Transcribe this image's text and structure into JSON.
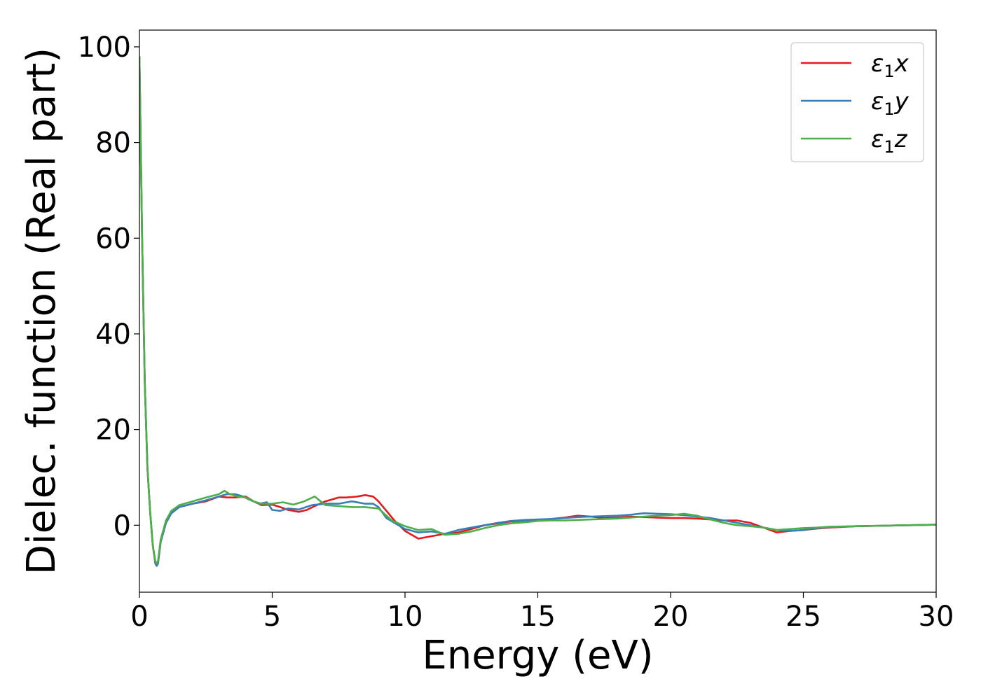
{
  "chart_data": {
    "type": "line",
    "title": "",
    "xlabel": "Energy (eV)",
    "ylabel": "Dielec. function (Real part)",
    "xlim": [
      0,
      30
    ],
    "ylim": [
      -14,
      103.5
    ],
    "xticks": [
      0,
      5,
      10,
      15,
      20,
      25,
      30
    ],
    "yticks": [
      0,
      20,
      40,
      60,
      80,
      100
    ],
    "grid": false,
    "legend_position": "top-right",
    "series": [
      {
        "name": "ε₁x",
        "legend_base": "ε",
        "legend_sub": "1",
        "legend_var": "x",
        "color": "#e41a1c",
        "x": [
          0,
          0.1,
          0.2,
          0.3,
          0.4,
          0.5,
          0.6,
          0.65,
          0.7,
          0.8,
          1.0,
          1.2,
          1.5,
          2.0,
          2.5,
          3.0,
          3.3,
          3.6,
          4.0,
          4.3,
          4.6,
          5.0,
          5.3,
          5.6,
          6.0,
          6.3,
          6.6,
          7.0,
          7.5,
          7.8,
          8.2,
          8.5,
          8.8,
          9.0,
          9.3,
          9.6,
          10.0,
          10.5,
          11.0,
          11.5,
          12.0,
          12.5,
          13.0,
          13.5,
          14.0,
          14.5,
          15.0,
          15.5,
          16.0,
          16.5,
          17.0,
          17.5,
          18.0,
          18.5,
          19.0,
          19.5,
          20.0,
          20.5,
          21.0,
          21.5,
          22.0,
          22.5,
          23.0,
          23.5,
          24.0,
          24.5,
          25.0,
          25.5,
          26.0,
          27.0,
          28.0,
          29.0,
          30.0
        ],
        "y": [
          98,
          60,
          30,
          12,
          3,
          -4,
          -8,
          -8.5,
          -8,
          -3.5,
          0.5,
          2.5,
          3.8,
          4.5,
          5.0,
          6.0,
          5.8,
          5.8,
          6.0,
          5.0,
          4.2,
          4.3,
          3.8,
          3.2,
          2.8,
          3.2,
          4.0,
          5.0,
          5.8,
          5.8,
          6.0,
          6.3,
          6.0,
          5.0,
          3.0,
          1.0,
          -1.2,
          -2.8,
          -2.3,
          -1.8,
          -1.5,
          -0.8,
          0.0,
          0.4,
          0.8,
          1.0,
          1.1,
          1.3,
          1.6,
          2.0,
          1.8,
          1.5,
          1.6,
          1.8,
          1.7,
          1.6,
          1.5,
          1.5,
          1.4,
          1.2,
          1.0,
          1.0,
          0.5,
          -0.5,
          -1.5,
          -1.2,
          -1.0,
          -0.7,
          -0.5,
          -0.2,
          -0.1,
          0.0,
          0.1
        ]
      },
      {
        "name": "ε₁y",
        "legend_base": "ε",
        "legend_sub": "1",
        "legend_var": "y",
        "color": "#377eb8",
        "x": [
          0,
          0.1,
          0.2,
          0.3,
          0.4,
          0.5,
          0.6,
          0.65,
          0.7,
          0.8,
          1.0,
          1.2,
          1.5,
          2.0,
          2.5,
          3.0,
          3.3,
          3.6,
          3.9,
          4.2,
          4.5,
          4.8,
          5.0,
          5.3,
          5.6,
          6.0,
          6.5,
          7.0,
          7.5,
          8.0,
          8.5,
          8.8,
          9.0,
          9.3,
          9.6,
          10.0,
          10.5,
          11.0,
          11.5,
          12.0,
          12.5,
          13.0,
          13.5,
          14.0,
          14.5,
          15.0,
          15.5,
          16.0,
          16.5,
          17.0,
          17.5,
          18.0,
          18.5,
          19.0,
          19.5,
          20.0,
          20.5,
          21.0,
          21.5,
          22.0,
          22.5,
          23.0,
          23.5,
          24.0,
          24.5,
          25.0,
          25.5,
          26.0,
          27.0,
          28.0,
          29.0,
          30.0
        ],
        "y": [
          98,
          60,
          30,
          12,
          3,
          -4,
          -8,
          -8.5,
          -8,
          -3.5,
          0.5,
          2.5,
          3.8,
          4.5,
          5.2,
          6.0,
          6.5,
          6.5,
          6.0,
          5.2,
          4.5,
          4.8,
          3.2,
          3.0,
          3.5,
          3.3,
          4.2,
          4.5,
          4.5,
          5.0,
          4.5,
          4.5,
          3.8,
          1.5,
          0.5,
          -0.8,
          -1.5,
          -1.3,
          -1.8,
          -1.0,
          -0.5,
          0.0,
          0.5,
          0.9,
          1.1,
          1.2,
          1.3,
          1.5,
          1.7,
          1.8,
          1.9,
          2.0,
          2.2,
          2.5,
          2.4,
          2.3,
          2.1,
          1.8,
          1.5,
          1.0,
          0.5,
          0.0,
          -0.5,
          -1.0,
          -1.2,
          -1.0,
          -0.6,
          -0.4,
          -0.2,
          -0.1,
          0.0,
          0.1
        ]
      },
      {
        "name": "ε₁z",
        "legend_base": "ε",
        "legend_sub": "1",
        "legend_var": "z",
        "color": "#4daf4a",
        "x": [
          0,
          0.1,
          0.2,
          0.3,
          0.4,
          0.5,
          0.6,
          0.65,
          0.7,
          0.8,
          1.0,
          1.2,
          1.5,
          2.0,
          2.5,
          3.0,
          3.2,
          3.4,
          3.7,
          4.0,
          4.3,
          4.6,
          5.0,
          5.4,
          5.8,
          6.2,
          6.6,
          7.0,
          7.5,
          8.0,
          8.5,
          9.0,
          9.5,
          10.0,
          10.5,
          11.0,
          11.5,
          12.0,
          12.5,
          13.0,
          13.5,
          14.0,
          14.5,
          15.0,
          15.5,
          16.0,
          16.5,
          17.0,
          17.5,
          18.0,
          18.5,
          19.0,
          19.5,
          20.0,
          20.5,
          21.0,
          21.5,
          22.0,
          22.5,
          23.0,
          23.5,
          24.0,
          24.5,
          25.0,
          25.5,
          26.0,
          27.0,
          28.0,
          29.0,
          30.0
        ],
        "y": [
          98,
          60,
          30,
          12,
          3,
          -4,
          -7.5,
          -8,
          -7.5,
          -3.0,
          1.0,
          3.0,
          4.2,
          5.0,
          5.8,
          6.5,
          7.2,
          6.5,
          6.0,
          5.8,
          5.0,
          4.5,
          4.5,
          4.8,
          4.3,
          5.0,
          6.0,
          4.2,
          4.0,
          3.8,
          3.8,
          3.5,
          1.0,
          -0.2,
          -1.0,
          -0.8,
          -2.0,
          -1.8,
          -1.3,
          -0.6,
          0.0,
          0.4,
          0.6,
          0.9,
          1.0,
          1.0,
          1.1,
          1.2,
          1.3,
          1.4,
          1.6,
          1.8,
          2.0,
          2.1,
          2.4,
          2.0,
          1.2,
          0.5,
          0.0,
          -0.2,
          -0.5,
          -1.0,
          -0.8,
          -0.6,
          -0.5,
          -0.3,
          -0.2,
          -0.1,
          0.0,
          0.1
        ]
      }
    ]
  }
}
